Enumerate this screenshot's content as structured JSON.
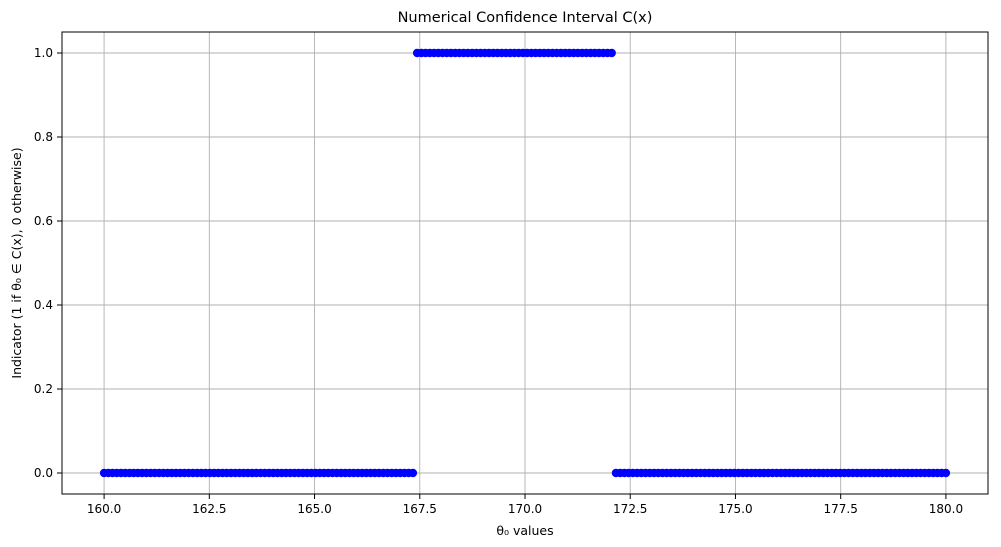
{
  "chart_data": {
    "type": "scatter",
    "title": "Numerical Confidence Interval C(x)",
    "xlabel": "θ₀ values",
    "ylabel": "Indicator (1 if θ₀ ∈ C(x), 0 otherwise)",
    "xlim": [
      159.0,
      181.0
    ],
    "ylim": [
      -0.05,
      1.05
    ],
    "xticks": [
      160.0,
      162.5,
      165.0,
      167.5,
      170.0,
      172.5,
      175.0,
      177.5,
      180.0
    ],
    "xtick_labels": [
      "160.0",
      "162.5",
      "165.0",
      "167.5",
      "170.0",
      "172.5",
      "175.0",
      "177.5",
      "180.0"
    ],
    "yticks": [
      0.0,
      0.2,
      0.4,
      0.6,
      0.8,
      1.0
    ],
    "ytick_labels": [
      "0.0",
      "0.2",
      "0.4",
      "0.6",
      "0.8",
      "1.0"
    ],
    "grid": true,
    "marker_color": "#0000ff",
    "series": [
      {
        "name": "indicator",
        "x_range": [
          160.0,
          180.0
        ],
        "num_points": 200,
        "interval_inside": [
          167.37,
          172.13
        ],
        "value_inside": 1,
        "value_outside": 0
      }
    ]
  }
}
